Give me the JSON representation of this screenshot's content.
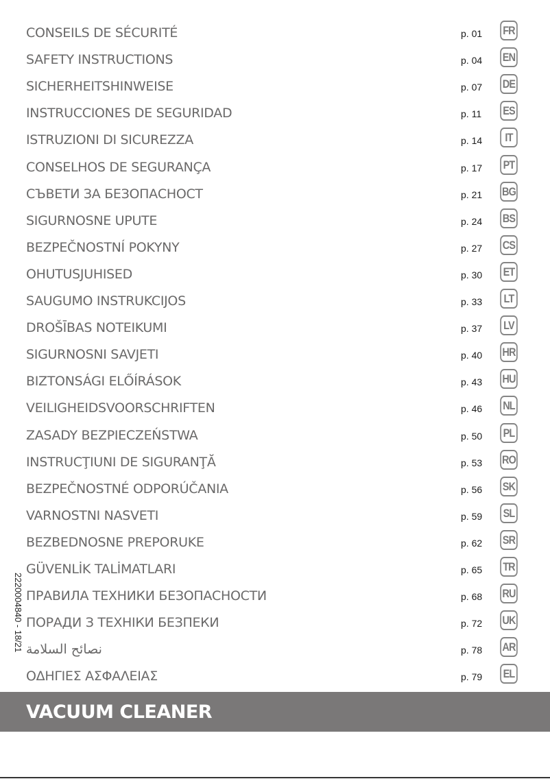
{
  "sections": [
    {
      "title": "CONSEILS DE SÉCURITÉ",
      "page": "p. 01",
      "lang": "FR"
    },
    {
      "title": "SAFETY INSTRUCTIONS",
      "page": "p. 04",
      "lang": "EN"
    },
    {
      "title": "SICHERHEITSHINWEISE",
      "page": "p. 07",
      "lang": "DE"
    },
    {
      "title": "INSTRUCCIONES DE SEGURIDAD",
      "page": "p. 11",
      "lang": "ES"
    },
    {
      "title": "ISTRUZIONI DI SICUREZZA",
      "page": "p. 14",
      "lang": "IT"
    },
    {
      "title": "CONSELHOS DE SEGURANÇA",
      "page": "p. 17",
      "lang": "PT"
    },
    {
      "title": "СЪВЕТИ ЗА БЕЗОПАСНОСТ",
      "page": "p. 21",
      "lang": "BG"
    },
    {
      "title": "SIGURNOSNE UPUTE",
      "page": "p. 24",
      "lang": "BS"
    },
    {
      "title": "BEZPEČNOSTNÍ POKYNY",
      "page": "p. 27",
      "lang": "CS"
    },
    {
      "title": "OHUTUSJUHISED",
      "page": "p. 30",
      "lang": "ET"
    },
    {
      "title": "SAUGUMO INSTRUKCIJOS",
      "page": "p. 33",
      "lang": "LT"
    },
    {
      "title": "DROŠĪBAS NOTEIKUMI",
      "page": "p. 37",
      "lang": "LV"
    },
    {
      "title": "SIGURNOSNI SAVJETI",
      "page": "p. 40",
      "lang": "HR"
    },
    {
      "title": "BIZTONSÁGI ELŐÍRÁSOK",
      "page": "p. 43",
      "lang": "HU"
    },
    {
      "title": "VEILIGHEIDSVOORSCHRIFTEN",
      "page": "p. 46",
      "lang": "NL"
    },
    {
      "title": "ZASADY BEZPIECZEŃSTWA",
      "page": "p. 50",
      "lang": "PL"
    },
    {
      "title": "INSTRUCŢIUNI DE SIGURANŢĂ",
      "page": "p. 53",
      "lang": "RO"
    },
    {
      "title": "BEZPEČNOSTNÉ ODPORÚČANIA",
      "page": "p. 56",
      "lang": "SK"
    },
    {
      "title": "VARNOSTNI NASVETI",
      "page": "p. 59",
      "lang": "SL"
    },
    {
      "title": "BEZBEDNOSNE PREPORUKE",
      "page": "p. 62",
      "lang": "SR"
    },
    {
      "title": "GÜVENLİK TALİMATLARI",
      "page": "p. 65",
      "lang": "TR"
    },
    {
      "title": "ПРАВИЛА ТЕХНИКИ БЕЗОПАСНОСТИ",
      "page": "p. 68",
      "lang": "RU"
    },
    {
      "title": "ПОРАДИ З ТЕХНІКИ БЕЗПЕКИ",
      "page": "p. 72",
      "lang": "UK"
    },
    {
      "title": "نصائح السلامة",
      "page": "p. 78",
      "lang": "AR"
    },
    {
      "title": "ΟΔΗΓΙΕΣ ΑΣΦΑΛΕΙΑΣ",
      "page": "p. 79",
      "lang": "EL"
    }
  ],
  "reference_code": "2220004840 - 18/21",
  "product_title": "VACUUM CLEANER",
  "colors": {
    "banner": "#7a7878",
    "text": "#6a6969"
  }
}
